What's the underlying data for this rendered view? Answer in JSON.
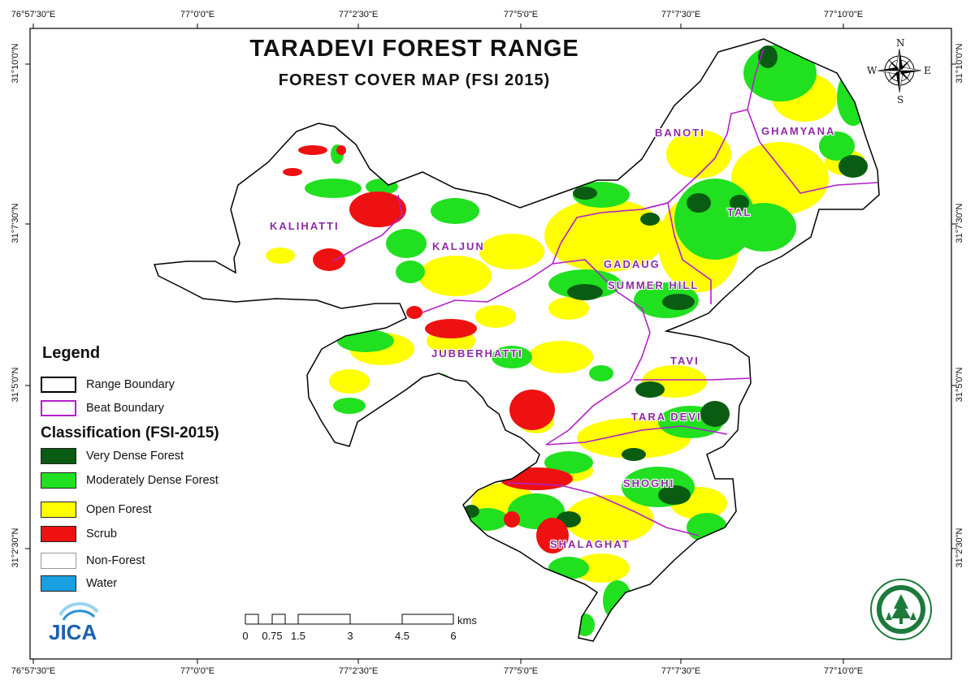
{
  "title": "TARADEVI FOREST RANGE",
  "subtitle": "FOREST COVER MAP (FSI 2015)",
  "graticule": {
    "top_labels": [
      "76°57'30\"E",
      "77°0'0\"E",
      "77°2'30\"E",
      "77°5'0\"E",
      "77°7'30\"E",
      "77°10'0\"E"
    ],
    "bottom_labels": [
      "76°57'30\"E",
      "77°0'0\"E",
      "77°2'30\"E",
      "77°5'0\"E",
      "77°7'30\"E",
      "77°10'0\"E"
    ],
    "left_labels": [
      "31°10'0\"N",
      "31°7'30\"N",
      "31°5'0\"N",
      "31°2'30\"N"
    ],
    "right_labels": [
      "31°10'0\"N",
      "31°7'30\"N",
      "31°5'0\"N",
      "31°2'30\"N"
    ]
  },
  "legend": {
    "title": "Legend",
    "boundary_items": [
      {
        "label": "Range Boundary",
        "color": "#000000"
      },
      {
        "label": "Beat Boundary",
        "color": "#b41fc9"
      }
    ],
    "classification_title": "Classification (FSI-2015)",
    "classes": [
      {
        "label": "Very Dense Forest",
        "color": "#0a5c12"
      },
      {
        "label": "Moderately Dense Forest",
        "color": "#20e020"
      },
      {
        "label": "Open Forest",
        "color": "#ffff00"
      },
      {
        "label": "Scrub",
        "color": "#ee1111"
      },
      {
        "label": "Non-Forest",
        "color": "#ffffff"
      },
      {
        "label": "Water",
        "color": "#1a9fe0"
      }
    ]
  },
  "beats": [
    "KALIHATTI",
    "KALJUN",
    "BANOTI",
    "GHAMYANA",
    "TAL",
    "GADAUG",
    "SUMMER HILL",
    "JUBBERHATTI",
    "TAVI",
    "TARA DEVI",
    "SHOGHI",
    "SHALAGHAT"
  ],
  "scale_bar": {
    "ticks": [
      "0",
      "0.75",
      "1.5",
      "3",
      "4.5",
      "6"
    ],
    "unit": "kms"
  },
  "compass": {
    "n": "N",
    "s": "S",
    "e": "E",
    "w": "W"
  },
  "logos": {
    "jica": "JICA",
    "forest_department": "forest-department-seal"
  }
}
